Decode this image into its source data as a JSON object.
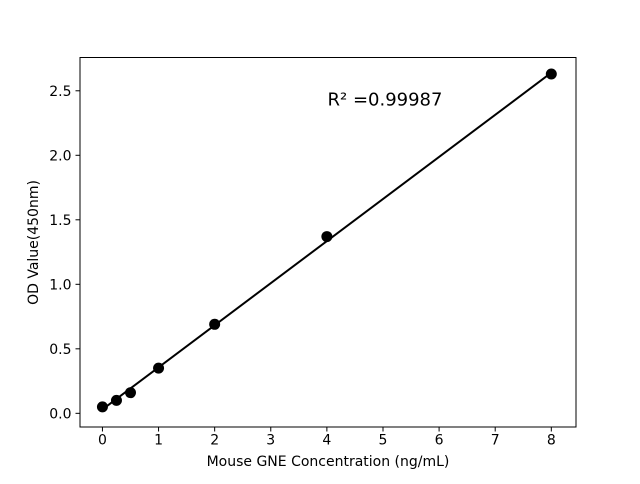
{
  "chart_data": {
    "type": "scatter",
    "title": "",
    "xlabel": "Mouse GNE Concentration (ng/mL)",
    "ylabel": "OD Value(450nm)",
    "annotation": "R² =0.99987",
    "x": [
      0,
      0.25,
      0.5,
      1,
      2,
      4,
      8
    ],
    "y": [
      0.05,
      0.1,
      0.16,
      0.35,
      0.69,
      1.37,
      2.63
    ],
    "trendline": {
      "x1": 0,
      "y1": 0.03,
      "x2": 8,
      "y2": 2.64
    },
    "xtick_values": [
      0,
      1,
      2,
      3,
      4,
      5,
      6,
      7,
      8
    ],
    "xtick_labels": [
      "0",
      "1",
      "2",
      "3",
      "4",
      "5",
      "6",
      "7",
      "8"
    ],
    "ytick_values": [
      0,
      0.5,
      1,
      1.5,
      2,
      2.5
    ],
    "ytick_labels": [
      "0.0",
      "0.5",
      "1.0",
      "1.5",
      "2.0",
      "2.5"
    ],
    "xlim": [
      -0.4,
      8.44
    ],
    "ylim": [
      -0.106,
      2.758
    ],
    "grid": false,
    "legend_position": "none",
    "marker_radius_px": 5.5,
    "colors": {
      "marker": "#000000",
      "line": "#000000",
      "text": "#000000",
      "background": "#ffffff"
    }
  }
}
